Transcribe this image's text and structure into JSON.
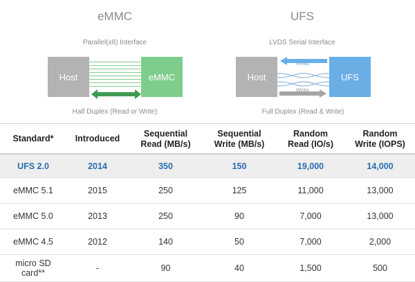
{
  "emmc": {
    "title": "eMMC",
    "interface": "Parallel(x8) Interface",
    "host_label": "Host",
    "device_label": "eMMC",
    "duplex": "Half Duplex (Read or Write)"
  },
  "ufs": {
    "title": "UFS",
    "interface": "LVDS Serial Interface",
    "host_label": "Host",
    "device_label": "UFS",
    "read_label": "Read",
    "write_label": "Write",
    "duplex": "Full Duplex (Read & Write)"
  },
  "colors": {
    "emmc_green": "#7fcd8d",
    "ufs_blue": "#6aaee6",
    "host_gray": "#b3b3b3",
    "highlight_text": "#2a6db0"
  },
  "table": {
    "headers": [
      [
        "Standard*"
      ],
      [
        "Introduced"
      ],
      [
        "Sequential",
        "Read (MB/s)"
      ],
      [
        "Sequential",
        "Write (MB/s)"
      ],
      [
        "Random",
        "Read (IO/s)"
      ],
      [
        "Random",
        "Write (IOPS)"
      ]
    ],
    "rows": [
      {
        "standard": "UFS 2.0",
        "introduced": "2014",
        "seq_read": "350",
        "seq_write": "150",
        "rand_read": "19,000",
        "rand_write": "14,000"
      },
      {
        "standard": "eMMC 5.1",
        "introduced": "2015",
        "seq_read": "250",
        "seq_write": "125",
        "rand_read": "11,000",
        "rand_write": "13,000"
      },
      {
        "standard": "eMMC 5.0",
        "introduced": "2013",
        "seq_read": "250",
        "seq_write": "90",
        "rand_read": "7,000",
        "rand_write": "13,000"
      },
      {
        "standard": "eMMC 4.5",
        "introduced": "2012",
        "seq_read": "140",
        "seq_write": "50",
        "rand_read": "7,000",
        "rand_write": "2,000"
      },
      {
        "standard_lines": [
          "micro SD",
          "card**"
        ],
        "introduced": "-",
        "seq_read": "90",
        "seq_write": "40",
        "rand_read": "1,500",
        "rand_write": "500"
      }
    ]
  }
}
